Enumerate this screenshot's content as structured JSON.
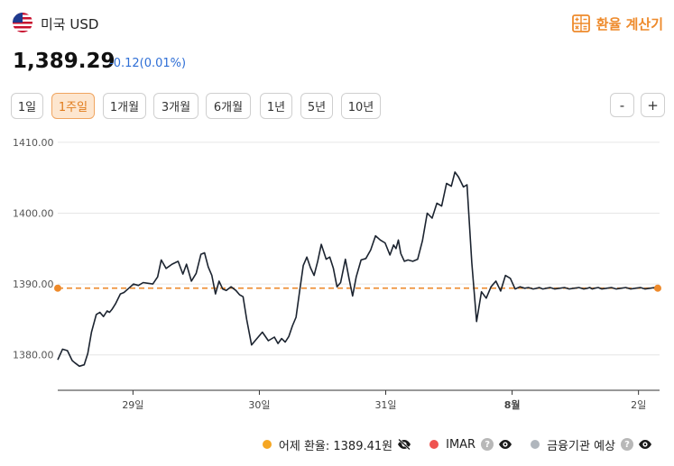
{
  "header": {
    "currency_name": "미국 USD",
    "flag_icon": "us-flag-icon",
    "calc_label": "환율 계산기",
    "calc_icon": "calculator-icon",
    "accent": "#ee8a2b"
  },
  "rate": {
    "value": "1,389.29",
    "change": "-0.12(0.01%)",
    "change_color": "#2f6fd6"
  },
  "periods": {
    "items": [
      "1일",
      "1주일",
      "1개월",
      "3개월",
      "6개월",
      "1년",
      "5년",
      "10년"
    ],
    "active": "1주일"
  },
  "zoom": {
    "minus": "-",
    "plus": "+"
  },
  "chart_data": {
    "type": "line",
    "y_ticks": [
      "1410.00",
      "1400.00",
      "1390.00",
      "1380.00"
    ],
    "y_tick_values": [
      1410,
      1400,
      1390,
      1380
    ],
    "ylim": [
      1375,
      1411
    ],
    "x_ticks": [
      {
        "label": "29일",
        "pos": 0.125,
        "bold": false
      },
      {
        "label": "30일",
        "pos": 0.335,
        "bold": false
      },
      {
        "label": "31일",
        "pos": 0.545,
        "bold": false
      },
      {
        "label": "8월",
        "pos": 0.755,
        "bold": true
      },
      {
        "label": "2일",
        "pos": 0.965,
        "bold": false
      }
    ],
    "reference_line": {
      "value": 1389.41,
      "color": "#ee8a2b"
    },
    "line_color": "#1c2430",
    "series": [
      {
        "t": [
          0.0,
          0.008,
          0.016,
          0.024,
          0.028,
          0.036,
          0.044,
          0.05,
          0.056,
          0.064,
          0.07,
          0.076,
          0.082,
          0.086,
          0.09,
          0.096,
          0.104,
          0.11,
          0.118,
          0.126,
          0.134,
          0.142,
          0.15,
          0.158,
          0.166,
          0.172,
          0.18,
          0.19,
          0.2,
          0.208,
          0.214,
          0.222,
          0.23,
          0.238,
          0.244,
          0.25,
          0.256,
          0.262,
          0.268,
          0.274,
          0.28,
          0.288,
          0.296,
          0.302,
          0.308,
          0.314,
          0.322,
          0.33,
          0.34,
          0.35,
          0.36,
          0.366,
          0.372,
          0.378,
          0.384,
          0.39,
          0.396,
          0.402,
          0.408,
          0.414,
          0.42,
          0.426,
          0.432,
          0.438,
          0.446,
          0.452,
          0.458,
          0.464,
          0.47,
          0.478,
          0.484,
          0.49,
          0.496,
          0.504,
          0.512,
          0.52,
          0.528,
          0.536,
          0.544,
          0.552,
          0.558,
          0.562,
          0.566,
          0.57,
          0.576,
          0.582,
          0.59,
          0.598,
          0.606,
          0.614,
          0.622,
          0.63,
          0.638,
          0.646,
          0.654,
          0.66,
          0.666,
          0.674,
          0.68,
          0.688,
          0.696,
          0.704,
          0.712,
          0.72,
          0.728,
          0.736,
          0.744,
          0.752,
          0.76,
          0.768,
          0.776,
          0.782,
          0.79,
          0.796,
          0.8,
          0.806,
          0.812,
          0.818,
          0.826,
          0.834,
          0.842,
          0.85,
          0.858,
          0.866,
          0.874,
          0.88,
          0.884,
          0.888,
          0.892,
          0.898,
          0.904,
          0.912,
          0.92,
          0.928,
          0.936,
          0.944,
          0.952,
          0.96,
          0.968,
          0.976,
          0.984,
          0.992,
          1.0
        ],
        "y": [
          1379.3,
          1380.8,
          1380.6,
          1379.2,
          1378.9,
          1378.4,
          1378.6,
          1380.2,
          1383.2,
          1385.7,
          1386.0,
          1385.4,
          1386.2,
          1386.0,
          1386.4,
          1387.2,
          1388.6,
          1388.8,
          1389.4,
          1390.0,
          1389.8,
          1390.2,
          1390.1,
          1390.0,
          1391.0,
          1393.4,
          1392.2,
          1392.8,
          1393.2,
          1391.4,
          1392.8,
          1390.4,
          1391.5,
          1394.2,
          1394.4,
          1392.4,
          1391.2,
          1388.6,
          1390.4,
          1389.3,
          1389.1,
          1389.6,
          1389.1,
          1388.5,
          1388.2,
          1385.0,
          1381.4,
          1382.2,
          1383.2,
          1382.0,
          1382.5,
          1381.6,
          1382.3,
          1381.8,
          1382.6,
          1384.1,
          1385.3,
          1389.0,
          1392.6,
          1393.8,
          1392.3,
          1391.2,
          1393.2,
          1395.6,
          1393.5,
          1393.8,
          1392.2,
          1389.6,
          1390.2,
          1393.5,
          1390.8,
          1388.3,
          1391.0,
          1393.4,
          1393.6,
          1394.8,
          1396.8,
          1396.2,
          1395.8,
          1394.1,
          1395.5,
          1395.0,
          1396.2,
          1394.3,
          1393.2,
          1393.4,
          1393.2,
          1393.5,
          1396.1,
          1400.0,
          1399.3,
          1401.4,
          1401.0,
          1404.2,
          1403.8,
          1405.8,
          1405.1,
          1403.7,
          1404.0,
          1393.0,
          1384.7,
          1388.9,
          1388.0,
          1389.6,
          1390.4,
          1389.0,
          1391.2,
          1390.8,
          1389.3,
          1389.6,
          1389.4,
          1389.5,
          1389.3,
          1389.4,
          1389.5,
          1389.3,
          1389.4,
          1389.5,
          1389.3,
          1389.4,
          1389.5,
          1389.3,
          1389.4,
          1389.5,
          1389.3,
          1389.4,
          1389.5,
          1389.3,
          1389.4,
          1389.5,
          1389.3,
          1389.4,
          1389.5,
          1389.3,
          1389.4,
          1389.5,
          1389.3,
          1389.4,
          1389.5,
          1389.3,
          1389.4,
          1389.5,
          1389.3
        ]
      }
    ]
  },
  "legend": {
    "yesterday": {
      "label": "어제 환율: 1389.41원",
      "color": "#f5a623"
    },
    "imar": {
      "label": "IMAR",
      "color": "#ef5350"
    },
    "bank": {
      "label": "금융기관 예상",
      "color": "#b0b6bd"
    },
    "help_glyph": "?"
  }
}
